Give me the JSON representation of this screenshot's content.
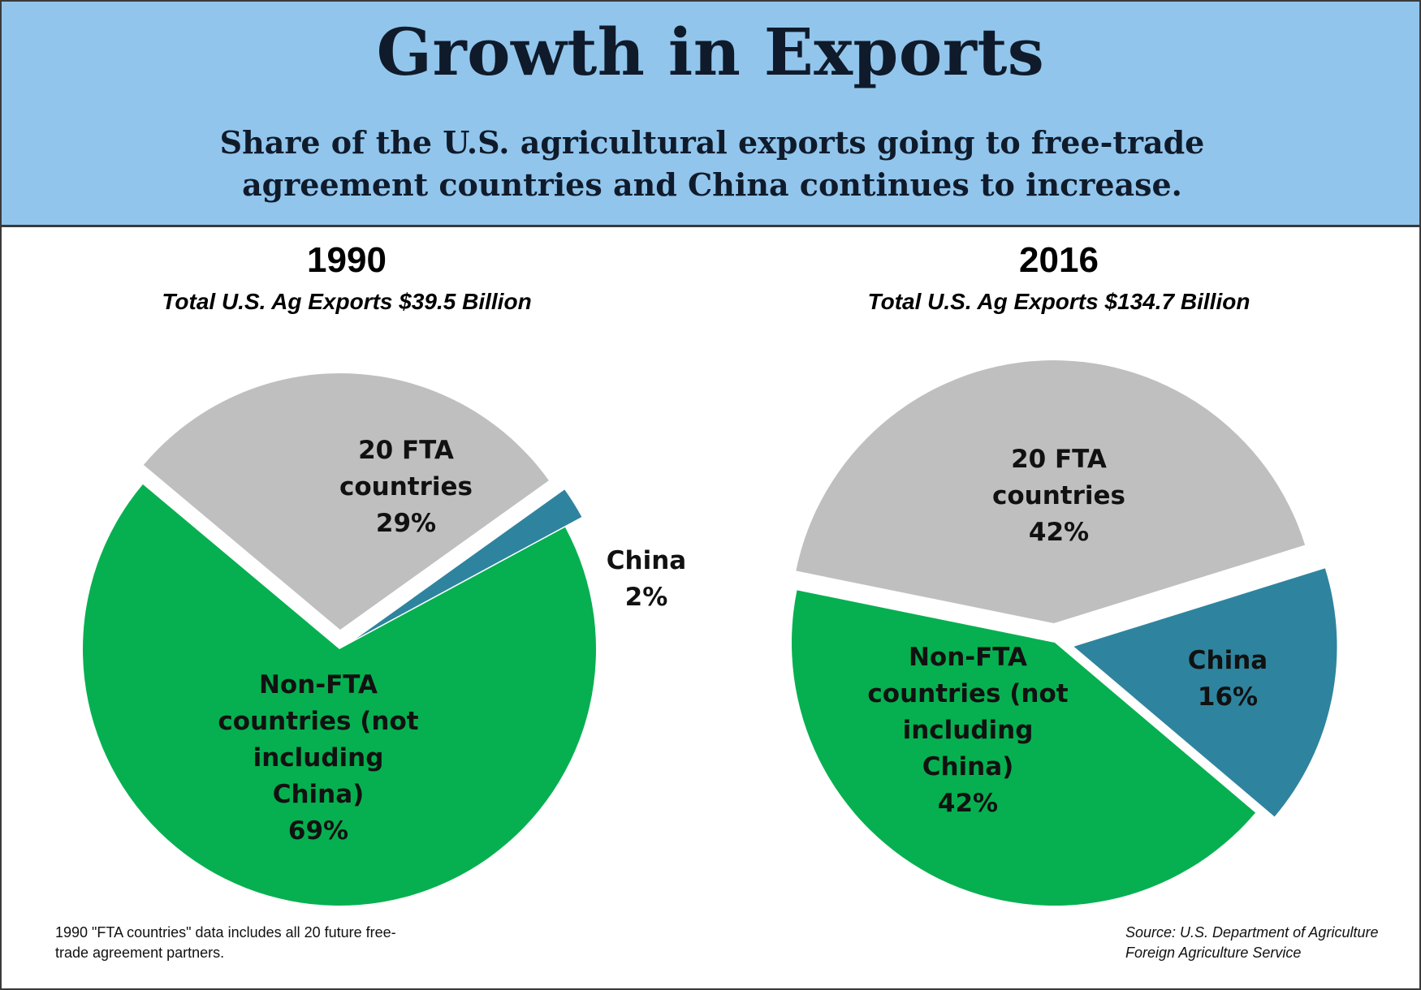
{
  "header": {
    "title": "Growth in Exports",
    "subtitle": "Share of the U.S. agricultural exports going to free-trade agreement countries and China continues to increase."
  },
  "colors": {
    "header_bg": "#92c5ec",
    "fta": "#bfbfbf",
    "china": "#2e849e",
    "non_fta": "#06b050"
  },
  "chart_data": [
    {
      "type": "pie",
      "title": "1990",
      "subtitle": "Total U.S. Ag Exports $39.5 Billion",
      "slices": [
        {
          "key": "fta",
          "label": "20 FTA countries",
          "value": 29,
          "value_label": "29%",
          "color": "#bfbfbf",
          "exploded": true
        },
        {
          "key": "china",
          "label": "China",
          "value": 2,
          "value_label": "2%",
          "color": "#2e849e",
          "exploded": true
        },
        {
          "key": "non_fta",
          "label": "Non-FTA countries (not including China)",
          "value": 69,
          "value_label": "69%",
          "color": "#06b050",
          "exploded": false
        }
      ]
    },
    {
      "type": "pie",
      "title": "2016",
      "subtitle": "Total U.S. Ag Exports $134.7 Billion",
      "slices": [
        {
          "key": "fta",
          "label": "20 FTA countries",
          "value": 42,
          "value_label": "42%",
          "color": "#bfbfbf",
          "exploded": true
        },
        {
          "key": "china",
          "label": "China",
          "value": 16,
          "value_label": "16%",
          "color": "#2e849e",
          "exploded": true
        },
        {
          "key": "non_fta",
          "label": "Non-FTA countries (not including China)",
          "value": 42,
          "value_label": "42%",
          "color": "#06b050",
          "exploded": false
        }
      ]
    }
  ],
  "footnote": "1990 \"FTA countries\" data includes all 20 future free-trade agreement partners.",
  "source": "Source: U.S. Department of Agriculture Foreign Agriculture Service"
}
